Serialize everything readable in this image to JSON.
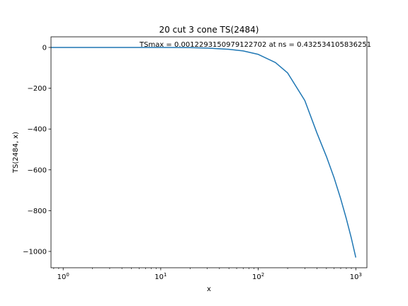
{
  "chart_data": {
    "type": "line",
    "title": "20 cut 3 cone TS(2484)",
    "xlabel": "x",
    "ylabel": "TS(2484, x)",
    "annotation": "TSmax = 0.0012293150979122702 at ns = 0.432534105836251",
    "x_scale": "log",
    "xlim": [
      0.75,
      1300
    ],
    "ylim": [
      -1080,
      52
    ],
    "x_ticks": [
      {
        "value": 1,
        "base": "10",
        "exp": "0"
      },
      {
        "value": 10,
        "base": "10",
        "exp": "1"
      },
      {
        "value": 100,
        "base": "10",
        "exp": "2"
      },
      {
        "value": 1000,
        "base": "10",
        "exp": "3"
      }
    ],
    "y_ticks": [
      {
        "value": 0,
        "label": "0"
      },
      {
        "value": -200,
        "label": "−200"
      },
      {
        "value": -400,
        "label": "−400"
      },
      {
        "value": -600,
        "label": "−600"
      },
      {
        "value": -800,
        "label": "−800"
      },
      {
        "value": -1000,
        "label": "−1000"
      }
    ],
    "grid": false,
    "series": [
      {
        "color": "#1f77b4",
        "x": [
          0.75,
          1,
          2,
          5,
          10,
          20,
          30,
          50,
          70,
          100,
          150,
          200,
          300,
          400,
          500,
          600,
          700,
          800,
          900,
          1000
        ],
        "y": [
          0,
          0,
          0,
          0,
          0,
          -1,
          -3,
          -9,
          -17,
          -34,
          -74,
          -125,
          -260,
          -420,
          -535,
          -640,
          -742,
          -840,
          -935,
          -1030
        ]
      }
    ]
  }
}
